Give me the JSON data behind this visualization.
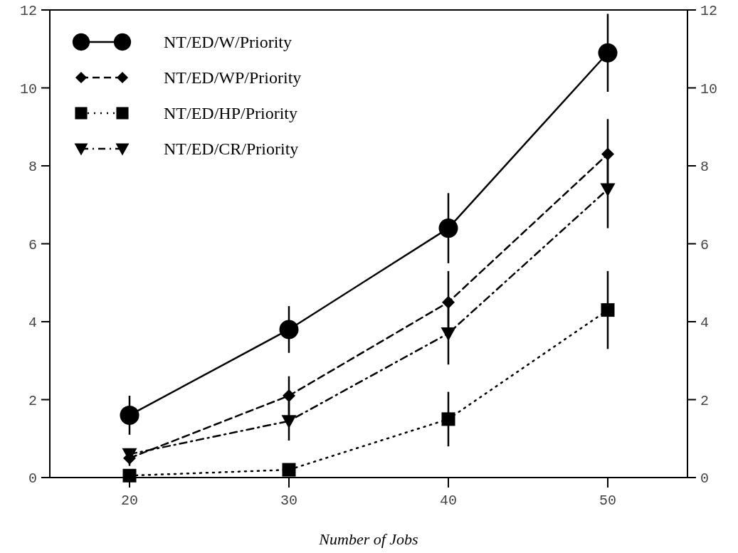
{
  "chart_data": {
    "type": "line",
    "xlabel": "Number of Jobs",
    "x": [
      20,
      30,
      40,
      50
    ],
    "xlim": [
      15,
      55
    ],
    "xticks": [
      20,
      30,
      40,
      50
    ],
    "ylim": [
      0,
      12
    ],
    "yticks": [
      0,
      2,
      4,
      6,
      8,
      10,
      12
    ],
    "y2lim": [
      0,
      12
    ],
    "y2ticks": [
      0,
      2,
      4,
      6,
      8,
      10,
      12
    ],
    "legend": "top left",
    "grid": false,
    "series": [
      {
        "name": "NT/ED/W/Priority",
        "color": "#000000",
        "marker": "circle",
        "line_style": "solid",
        "values": [
          1.6,
          3.8,
          6.4,
          10.9
        ],
        "errors": [
          0.5,
          0.6,
          0.9,
          1.0
        ]
      },
      {
        "name": "NT/ED/WP/Priority",
        "color": "#000000",
        "marker": "diamond",
        "line_style": "dashed",
        "values": [
          0.5,
          2.1,
          4.5,
          8.3
        ],
        "errors": [
          0.2,
          0.5,
          0.8,
          0.9
        ]
      },
      {
        "name": "NT/ED/HP/Priority",
        "color": "#000000",
        "marker": "square",
        "line_style": "dotted",
        "values": [
          0.05,
          0.2,
          1.5,
          4.3
        ],
        "errors": [
          null,
          null,
          0.7,
          1.0
        ]
      },
      {
        "name": "NT/ED/CR/Priority",
        "color": "#000000",
        "marker": "triangle",
        "line_style": "dashdot",
        "values": [
          0.6,
          1.45,
          3.7,
          7.4
        ],
        "errors": [
          null,
          0.5,
          0.8,
          1.0
        ]
      }
    ]
  }
}
